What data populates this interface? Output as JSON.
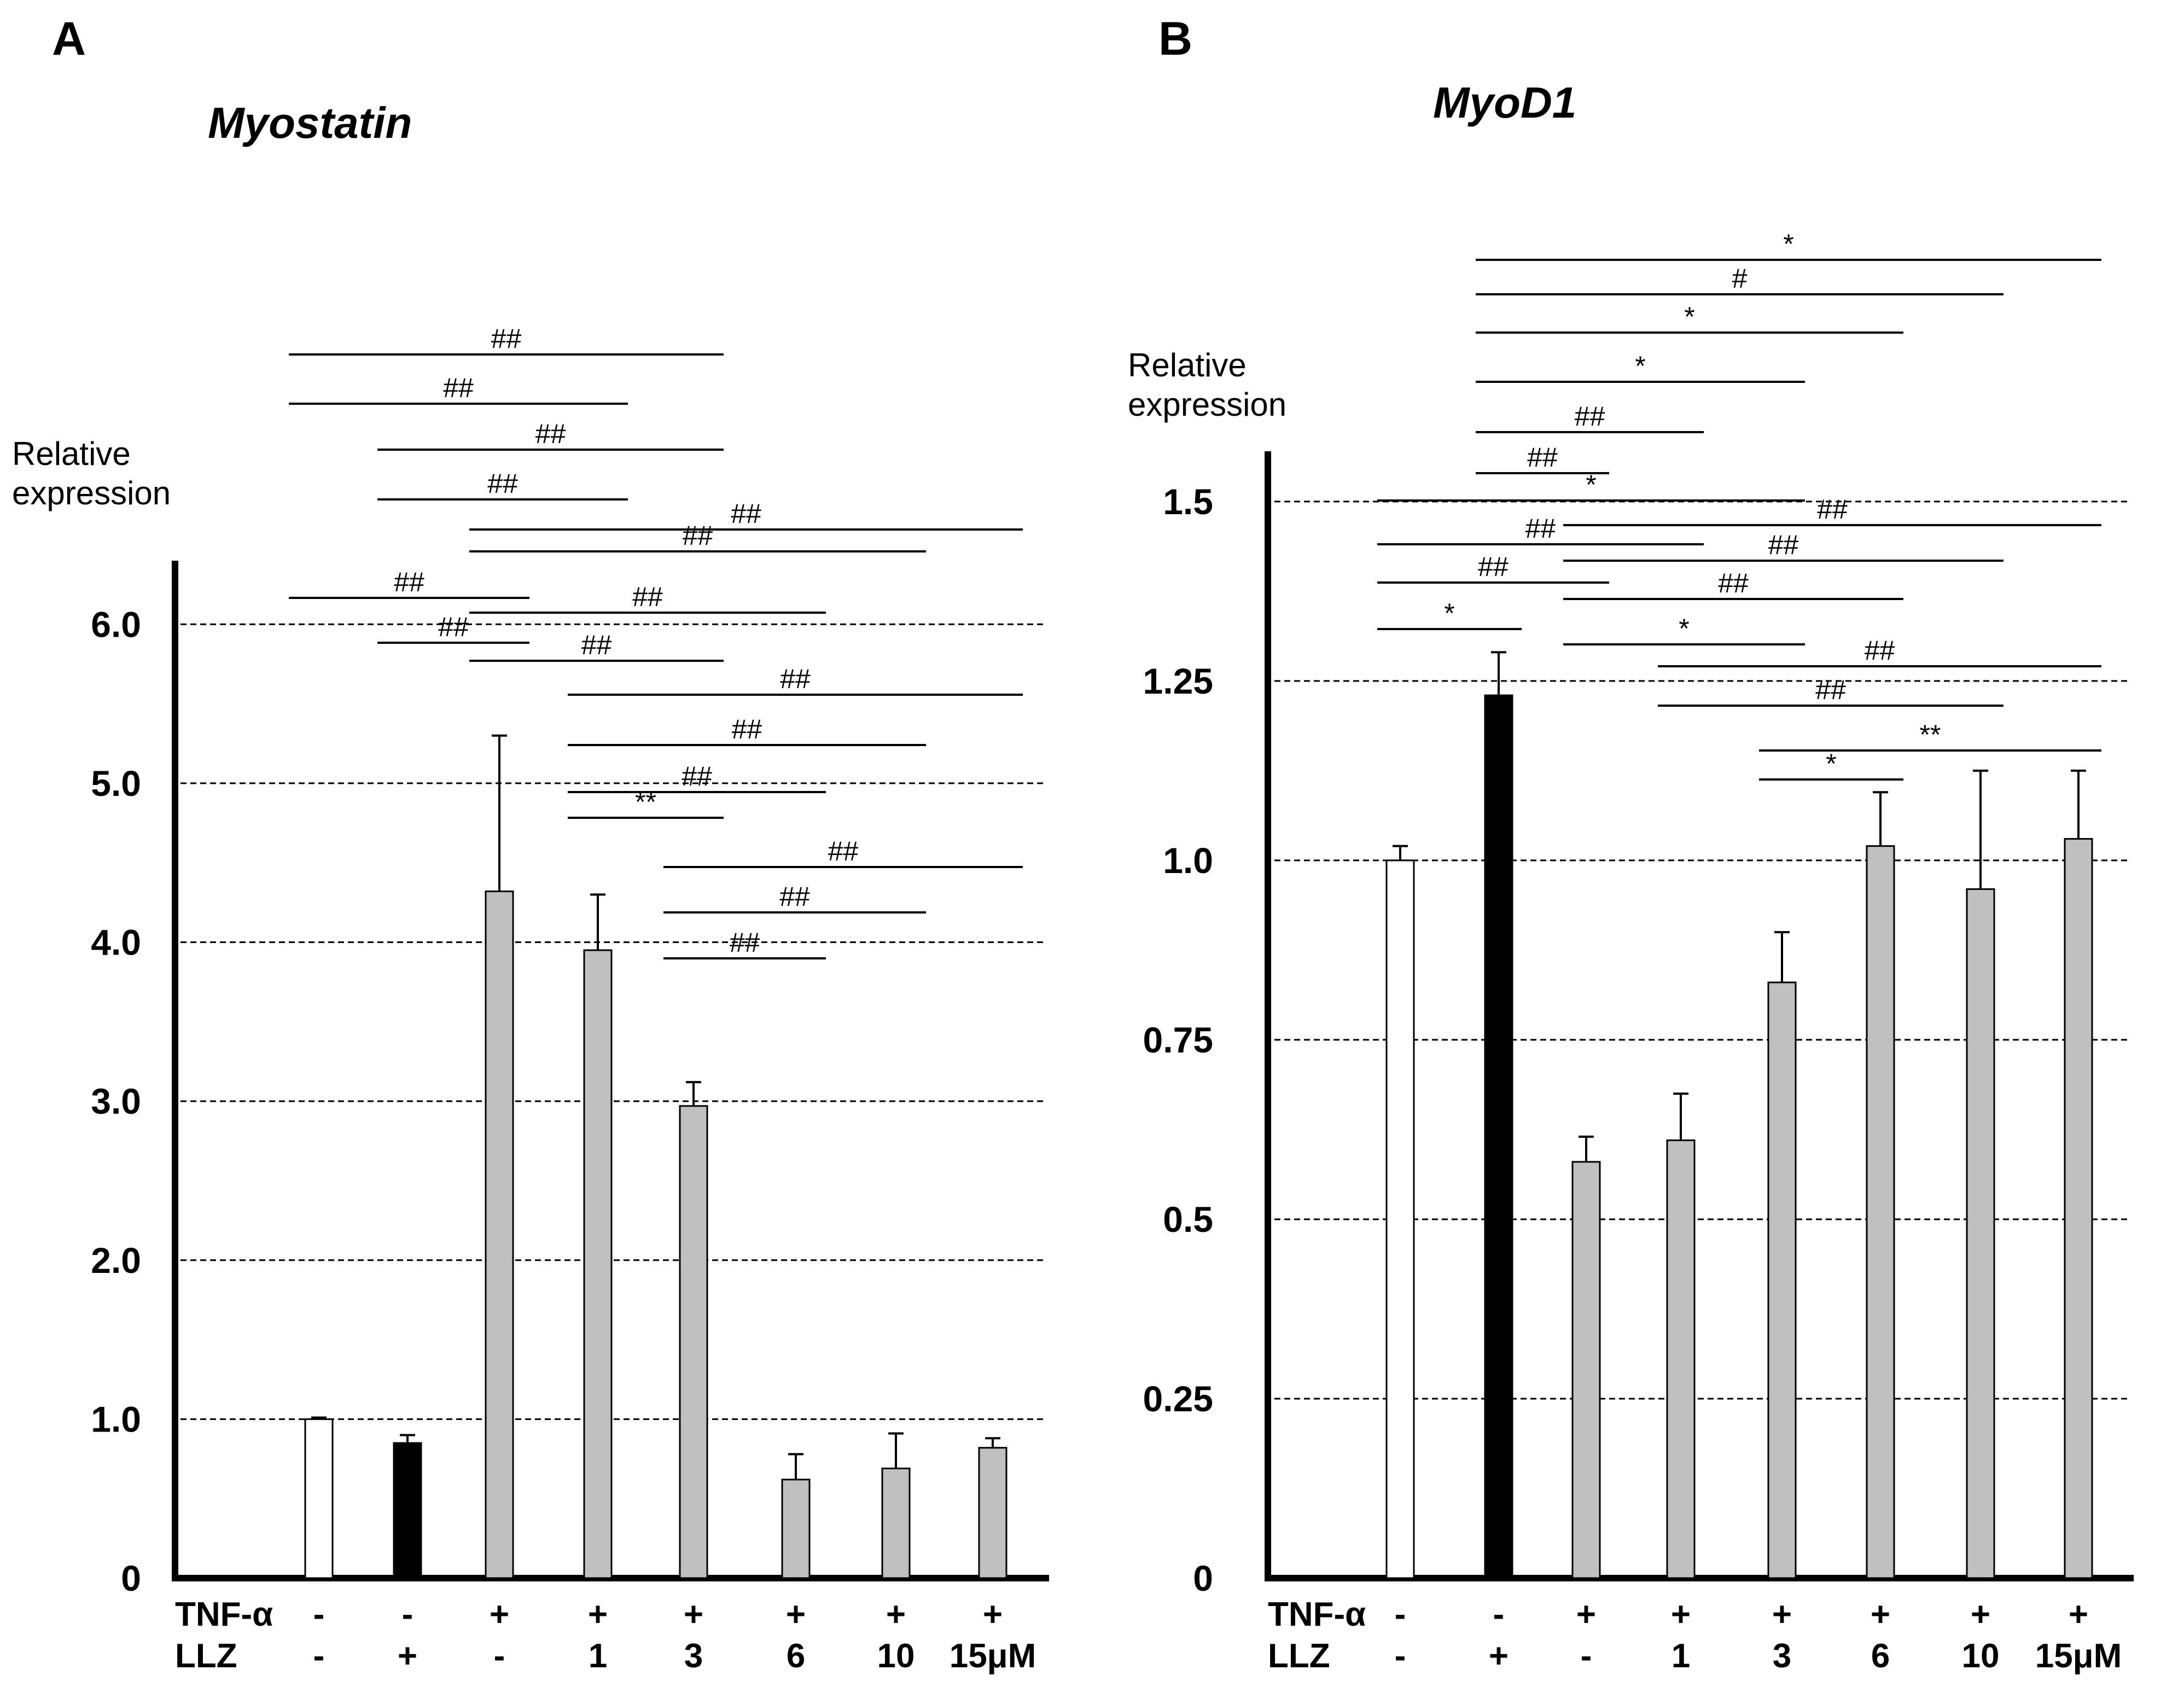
{
  "chart_data": [
    {
      "type": "bar",
      "panel_label": "A",
      "title": "Myostatin",
      "ylabel": [
        "Relative",
        "expression"
      ],
      "ylim": [
        0,
        6.4
      ],
      "yticks": [
        0,
        1.0,
        2.0,
        3.0,
        4.0,
        5.0,
        6.0
      ],
      "ytick_labels": [
        "0",
        "1.0",
        "2.0",
        "3.0",
        "4.0",
        "5.0",
        "6.0"
      ],
      "grid": "dashed horizontal at ticks",
      "row_labels": [
        "TNF-α",
        "LLZ"
      ],
      "categories": [
        {
          "tnf": "-",
          "llz": "-"
        },
        {
          "tnf": "-",
          "llz": "+"
        },
        {
          "tnf": "+",
          "llz": "-"
        },
        {
          "tnf": "+",
          "llz": "1"
        },
        {
          "tnf": "+",
          "llz": "3"
        },
        {
          "tnf": "+",
          "llz": "6"
        },
        {
          "tnf": "+",
          "llz": "10"
        },
        {
          "tnf": "+",
          "llz": "15μM"
        }
      ],
      "values": [
        1.0,
        0.85,
        4.32,
        3.95,
        2.97,
        0.62,
        0.69,
        0.82
      ],
      "errors": [
        0.01,
        0.05,
        0.98,
        0.35,
        0.15,
        0.16,
        0.22,
        0.06
      ],
      "colors": [
        "#ffffff",
        "#000000",
        "#c0c0c0",
        "#c0c0c0",
        "#c0c0c0",
        "#c0c0c0",
        "#c0c0c0",
        "#c0c0c0"
      ],
      "significance": [
        {
          "from": 0,
          "to": 4,
          "label": "##"
        },
        {
          "from": 0,
          "to": 3,
          "label": "##"
        },
        {
          "from": 1,
          "to": 4,
          "label": "##"
        },
        {
          "from": 1,
          "to": 3,
          "label": "##"
        },
        {
          "from": 2,
          "to": 7,
          "label": "##"
        },
        {
          "from": 2,
          "to": 6,
          "label": "##"
        },
        {
          "from": 0,
          "to": 2,
          "label": "##"
        },
        {
          "from": 2,
          "to": 5,
          "label": "##"
        },
        {
          "from": 1,
          "to": 2,
          "label": "##"
        },
        {
          "from": 2,
          "to": 4,
          "label": "##"
        },
        {
          "from": 3,
          "to": 7,
          "label": "##"
        },
        {
          "from": 3,
          "to": 6,
          "label": "##"
        },
        {
          "from": 3,
          "to": 5,
          "label": "##"
        },
        {
          "from": 3,
          "to": 4,
          "label": "**"
        },
        {
          "from": 4,
          "to": 7,
          "label": "##"
        },
        {
          "from": 4,
          "to": 6,
          "label": "##"
        },
        {
          "from": 4,
          "to": 5,
          "label": "##"
        }
      ]
    },
    {
      "type": "bar",
      "panel_label": "B",
      "title": "MyoD1",
      "ylabel": [
        "Relative",
        "expression"
      ],
      "ylim": [
        0,
        1.57
      ],
      "yticks": [
        0,
        0.25,
        0.5,
        0.75,
        1.0,
        1.25,
        1.5
      ],
      "ytick_labels": [
        "0",
        "0.25",
        "0.5",
        "0.75",
        "1.0",
        "1.25",
        "1.5"
      ],
      "grid": "dashed horizontal at ticks",
      "row_labels": [
        "TNF-α",
        "LLZ"
      ],
      "categories": [
        {
          "tnf": "-",
          "llz": "-"
        },
        {
          "tnf": "-",
          "llz": "+"
        },
        {
          "tnf": "+",
          "llz": "-"
        },
        {
          "tnf": "+",
          "llz": "1"
        },
        {
          "tnf": "+",
          "llz": "3"
        },
        {
          "tnf": "+",
          "llz": "6"
        },
        {
          "tnf": "+",
          "llz": "10"
        },
        {
          "tnf": "+",
          "llz": "15μM"
        }
      ],
      "values": [
        1.0,
        1.23,
        0.58,
        0.61,
        0.83,
        1.02,
        0.96,
        1.03
      ],
      "errors": [
        0.02,
        0.06,
        0.035,
        0.065,
        0.07,
        0.075,
        0.165,
        0.095
      ],
      "colors": [
        "#ffffff",
        "#000000",
        "#c0c0c0",
        "#c0c0c0",
        "#c0c0c0",
        "#c0c0c0",
        "#c0c0c0",
        "#c0c0c0"
      ],
      "significance": [
        {
          "from": 1,
          "to": 7,
          "label": "*"
        },
        {
          "from": 1,
          "to": 6,
          "label": "#"
        },
        {
          "from": 1,
          "to": 5,
          "label": "*"
        },
        {
          "from": 1,
          "to": 4,
          "label": "*"
        },
        {
          "from": 1,
          "to": 3,
          "label": "##"
        },
        {
          "from": 1,
          "to": 2,
          "label": "##"
        },
        {
          "from": 0,
          "to": 4,
          "label": "*"
        },
        {
          "from": 2,
          "to": 7,
          "label": "##"
        },
        {
          "from": 0,
          "to": 3,
          "label": "##"
        },
        {
          "from": 2,
          "to": 6,
          "label": "##"
        },
        {
          "from": 0,
          "to": 2,
          "label": "##"
        },
        {
          "from": 2,
          "to": 5,
          "label": "##"
        },
        {
          "from": 0,
          "to": 1,
          "label": "*"
        },
        {
          "from": 2,
          "to": 4,
          "label": "*"
        },
        {
          "from": 3,
          "to": 7,
          "label": "##"
        },
        {
          "from": 3,
          "to": 6,
          "label": "##"
        },
        {
          "from": 4,
          "to": 7,
          "label": "**"
        },
        {
          "from": 4,
          "to": 5,
          "label": "*"
        }
      ]
    }
  ]
}
